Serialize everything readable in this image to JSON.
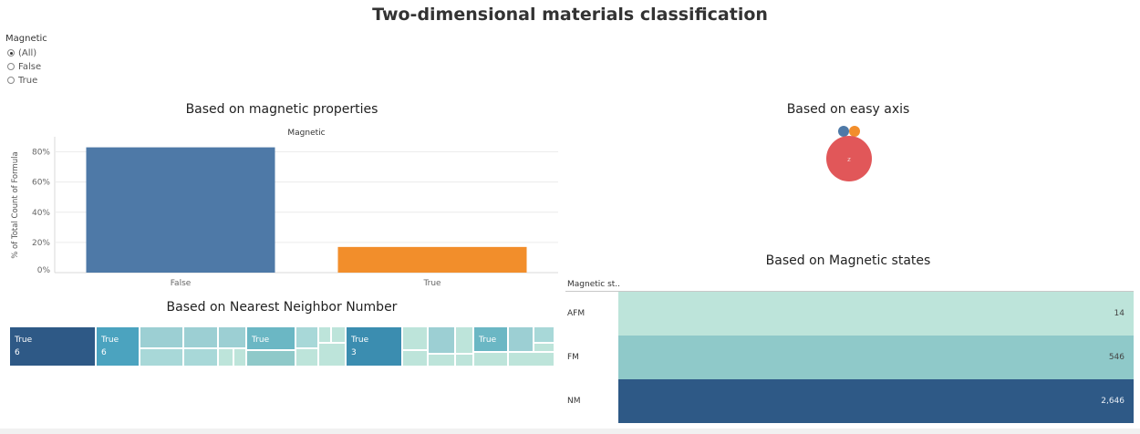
{
  "dashboard": {
    "title": "Two-dimensional materials classification"
  },
  "filter": {
    "title": "Magnetic",
    "options": [
      {
        "label": "(All)",
        "selected": true
      },
      {
        "label": "False",
        "selected": false
      },
      {
        "label": "True",
        "selected": false
      }
    ]
  },
  "colors": {
    "blue": "#4e79a7",
    "orange": "#f28e2b",
    "red": "#e15759",
    "teal_light": "#bde4da",
    "teal_mid": "#8fc9c9",
    "navy": "#2e5986"
  },
  "chart_data": [
    {
      "type": "bar",
      "title": "Based on magnetic properties",
      "column_header": "Magnetic",
      "categories": [
        "False",
        "True"
      ],
      "values": [
        83,
        17
      ],
      "ylabel": "% of Total Count of Formula",
      "ylim": [
        0,
        90
      ],
      "yticks": [
        "0%",
        "20%",
        "40%",
        "60%",
        "80%"
      ],
      "ytick_values": [
        0,
        20,
        40,
        60,
        80
      ],
      "grid": true,
      "colors": [
        "#4e79a7",
        "#f28e2b"
      ]
    },
    {
      "type": "scatter",
      "title": "Based on easy axis",
      "bubbles": [
        {
          "label": "",
          "value": 1,
          "color": "#4e79a7"
        },
        {
          "label": "",
          "value": 1,
          "color": "#f28e2b"
        },
        {
          "label": "z",
          "value": 16,
          "color": "#e15759"
        }
      ]
    },
    {
      "type": "heatmap",
      "title": "Based on Nearest Neighbor Number",
      "labeled_cells": [
        {
          "line1": "True",
          "line2": "6"
        },
        {
          "line1": "True",
          "line2": "6"
        },
        {
          "line1": "True",
          "line2": ""
        },
        {
          "line1": "True",
          "line2": "3"
        },
        {
          "line1": "True",
          "line2": ""
        }
      ]
    },
    {
      "type": "bar",
      "title": "Based on Magnetic states",
      "column_header": "Magnetic st..",
      "categories": [
        "AFM",
        "FM",
        "NM"
      ],
      "values": [
        14,
        546,
        2646
      ],
      "value_labels": [
        "14",
        "546",
        "2,646"
      ],
      "colors": [
        "#bde4da",
        "#8fc9c9",
        "#2e5986"
      ]
    }
  ]
}
